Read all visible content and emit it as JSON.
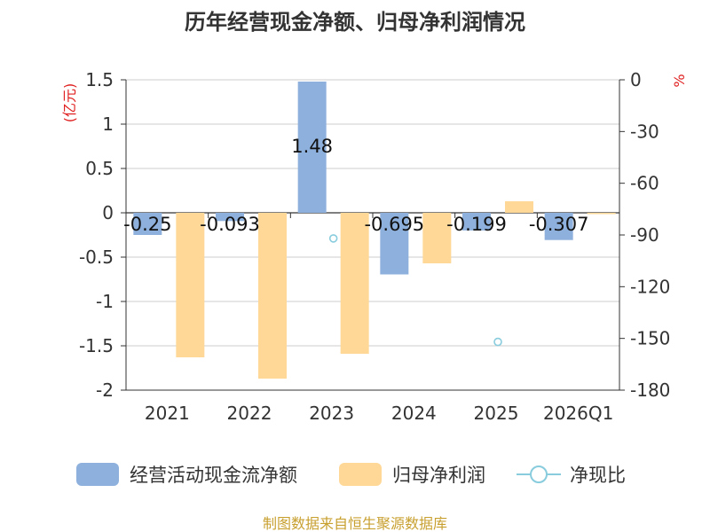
{
  "chart_data": {
    "type": "bar",
    "title": "历年经营现金净额、归母净利润情况",
    "categories": [
      "2021",
      "2022",
      "2023",
      "2024",
      "2025",
      "2026Q1"
    ],
    "left_axis": {
      "unit": "(亿元)",
      "min": -2,
      "max": 1.5,
      "ticks": [
        "1.5",
        "1",
        "0.5",
        "0",
        "-0.5",
        "-1",
        "-1.5",
        "-2"
      ]
    },
    "right_axis": {
      "unit": "%",
      "min": -180,
      "max": 0,
      "ticks": [
        "0",
        "-30",
        "-60",
        "-90",
        "-120",
        "-150",
        "-180"
      ]
    },
    "series": [
      {
        "name": "经营活动现金流净额",
        "type": "bar",
        "axis": "left",
        "color": "#8eb0dc",
        "values": [
          -0.25,
          -0.093,
          1.48,
          -0.695,
          -0.199,
          -0.307
        ],
        "labels": [
          "-0.25",
          "-0.093",
          "1.48",
          "-0.695",
          "-0.199",
          "-0.307"
        ]
      },
      {
        "name": "归母净利润",
        "type": "bar",
        "axis": "left",
        "color": "#ffd898",
        "values": [
          -1.63,
          -1.87,
          -1.59,
          -0.57,
          0.13,
          -0.01
        ]
      },
      {
        "name": "净现比",
        "type": "scatter",
        "axis": "right",
        "color": "#88ccdd",
        "values": [
          null,
          null,
          -92,
          null,
          -152,
          null
        ]
      }
    ],
    "legend_position": "bottom",
    "grid": true
  },
  "source": "制图数据来自恒生聚源数据库"
}
